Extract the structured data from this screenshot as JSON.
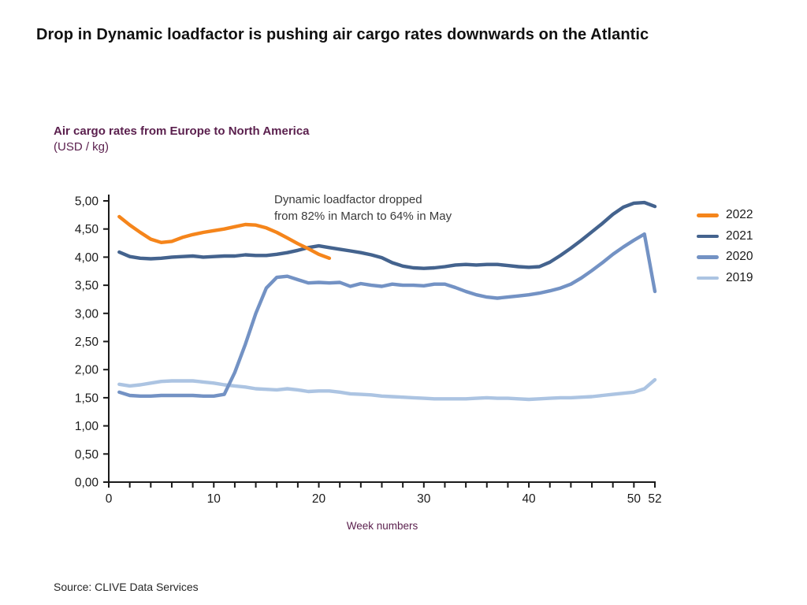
{
  "page": {
    "title": "Drop in Dynamic loadfactor is pushing air cargo rates downwards on the Atlantic"
  },
  "chart": {
    "subtitle": "Air cargo rates from Europe to North America",
    "unit_label": "(USD / kg)",
    "annotation_line1": "Dynamic loadfactor dropped",
    "annotation_line2": "from 82% in March to 64% in May",
    "source": "Source: CLIVE Data Services"
  },
  "chart_data": {
    "type": "line",
    "title": "Air cargo rates from Europe to North America (USD / kg)",
    "xlabel": "Week numbers",
    "ylabel": "USD / kg",
    "x_axis": {
      "min": 0,
      "max": 52,
      "minor_tick_step": 2,
      "labeled_ticks": [
        0,
        10,
        20,
        30,
        40,
        50,
        52
      ],
      "tick_labels": [
        "0",
        "10",
        "20",
        "30",
        "40",
        "50",
        "52"
      ]
    },
    "y_axis": {
      "min": 0,
      "max": 5,
      "tick_step": 0.5,
      "tick_labels": [
        "0,00",
        "0,50",
        "1,00",
        "1,50",
        "2,00",
        "2,50",
        "3,00",
        "3,50",
        "4,00",
        "4,50",
        "5,00"
      ]
    },
    "legend_position": "right",
    "grid": false,
    "axis_color": "#1a1a1a",
    "series": [
      {
        "name": "2019",
        "color": "#acc4e2",
        "x": [
          1,
          2,
          3,
          4,
          5,
          6,
          7,
          8,
          9,
          10,
          11,
          12,
          13,
          14,
          15,
          16,
          17,
          18,
          19,
          20,
          21,
          22,
          23,
          24,
          25,
          26,
          27,
          28,
          29,
          30,
          31,
          32,
          33,
          34,
          35,
          36,
          37,
          38,
          39,
          40,
          41,
          42,
          43,
          44,
          45,
          46,
          47,
          48,
          49,
          50,
          51,
          52
        ],
        "values": [
          1.74,
          1.71,
          1.73,
          1.76,
          1.79,
          1.8,
          1.8,
          1.8,
          1.78,
          1.76,
          1.73,
          1.71,
          1.69,
          1.66,
          1.65,
          1.64,
          1.66,
          1.64,
          1.61,
          1.62,
          1.62,
          1.6,
          1.57,
          1.56,
          1.55,
          1.53,
          1.52,
          1.51,
          1.5,
          1.49,
          1.48,
          1.48,
          1.48,
          1.48,
          1.49,
          1.5,
          1.49,
          1.49,
          1.48,
          1.47,
          1.48,
          1.49,
          1.5,
          1.5,
          1.51,
          1.52,
          1.54,
          1.56,
          1.58,
          1.6,
          1.66,
          1.82
        ]
      },
      {
        "name": "2020",
        "color": "#7392c4",
        "x": [
          1,
          2,
          3,
          4,
          5,
          6,
          7,
          8,
          9,
          10,
          11,
          12,
          13,
          14,
          15,
          16,
          17,
          18,
          19,
          20,
          21,
          22,
          23,
          24,
          25,
          26,
          27,
          28,
          29,
          30,
          31,
          32,
          33,
          34,
          35,
          36,
          37,
          38,
          39,
          40,
          41,
          42,
          43,
          44,
          45,
          46,
          47,
          48,
          49,
          50,
          51,
          52
        ],
        "values": [
          1.6,
          1.54,
          1.53,
          1.53,
          1.54,
          1.54,
          1.54,
          1.54,
          1.53,
          1.53,
          1.56,
          1.95,
          2.45,
          3.0,
          3.45,
          3.64,
          3.66,
          3.6,
          3.54,
          3.55,
          3.54,
          3.55,
          3.48,
          3.53,
          3.5,
          3.48,
          3.52,
          3.5,
          3.5,
          3.49,
          3.52,
          3.52,
          3.46,
          3.39,
          3.33,
          3.29,
          3.27,
          3.29,
          3.31,
          3.33,
          3.36,
          3.4,
          3.45,
          3.52,
          3.63,
          3.76,
          3.9,
          4.05,
          4.18,
          4.3,
          4.41,
          3.39
        ]
      },
      {
        "name": "2021",
        "color": "#44638e",
        "x": [
          1,
          2,
          3,
          4,
          5,
          6,
          7,
          8,
          9,
          10,
          11,
          12,
          13,
          14,
          15,
          16,
          17,
          18,
          19,
          20,
          21,
          22,
          23,
          24,
          25,
          26,
          27,
          28,
          29,
          30,
          31,
          32,
          33,
          34,
          35,
          36,
          37,
          38,
          39,
          40,
          41,
          42,
          43,
          44,
          45,
          46,
          47,
          48,
          49,
          50,
          51,
          52
        ],
        "values": [
          4.09,
          4.01,
          3.98,
          3.97,
          3.98,
          4.0,
          4.01,
          4.02,
          4.0,
          4.01,
          4.02,
          4.02,
          4.04,
          4.03,
          4.03,
          4.05,
          4.08,
          4.12,
          4.17,
          4.2,
          4.17,
          4.14,
          4.11,
          4.08,
          4.04,
          3.99,
          3.9,
          3.84,
          3.81,
          3.8,
          3.81,
          3.83,
          3.86,
          3.87,
          3.86,
          3.87,
          3.87,
          3.85,
          3.83,
          3.82,
          3.83,
          3.91,
          4.03,
          4.16,
          4.3,
          4.45,
          4.6,
          4.76,
          4.89,
          4.96,
          4.97,
          4.9
        ]
      },
      {
        "name": "2022",
        "color": "#f5851b",
        "x": [
          1,
          2,
          3,
          4,
          5,
          6,
          7,
          8,
          9,
          10,
          11,
          12,
          13,
          14,
          15,
          16,
          17,
          18,
          19,
          20,
          21
        ],
        "values": [
          4.72,
          4.57,
          4.44,
          4.32,
          4.26,
          4.28,
          4.35,
          4.4,
          4.44,
          4.47,
          4.5,
          4.54,
          4.58,
          4.57,
          4.52,
          4.44,
          4.34,
          4.24,
          4.15,
          4.05,
          3.98
        ]
      }
    ],
    "legend_order": [
      "2022",
      "2021",
      "2020",
      "2019"
    ]
  }
}
